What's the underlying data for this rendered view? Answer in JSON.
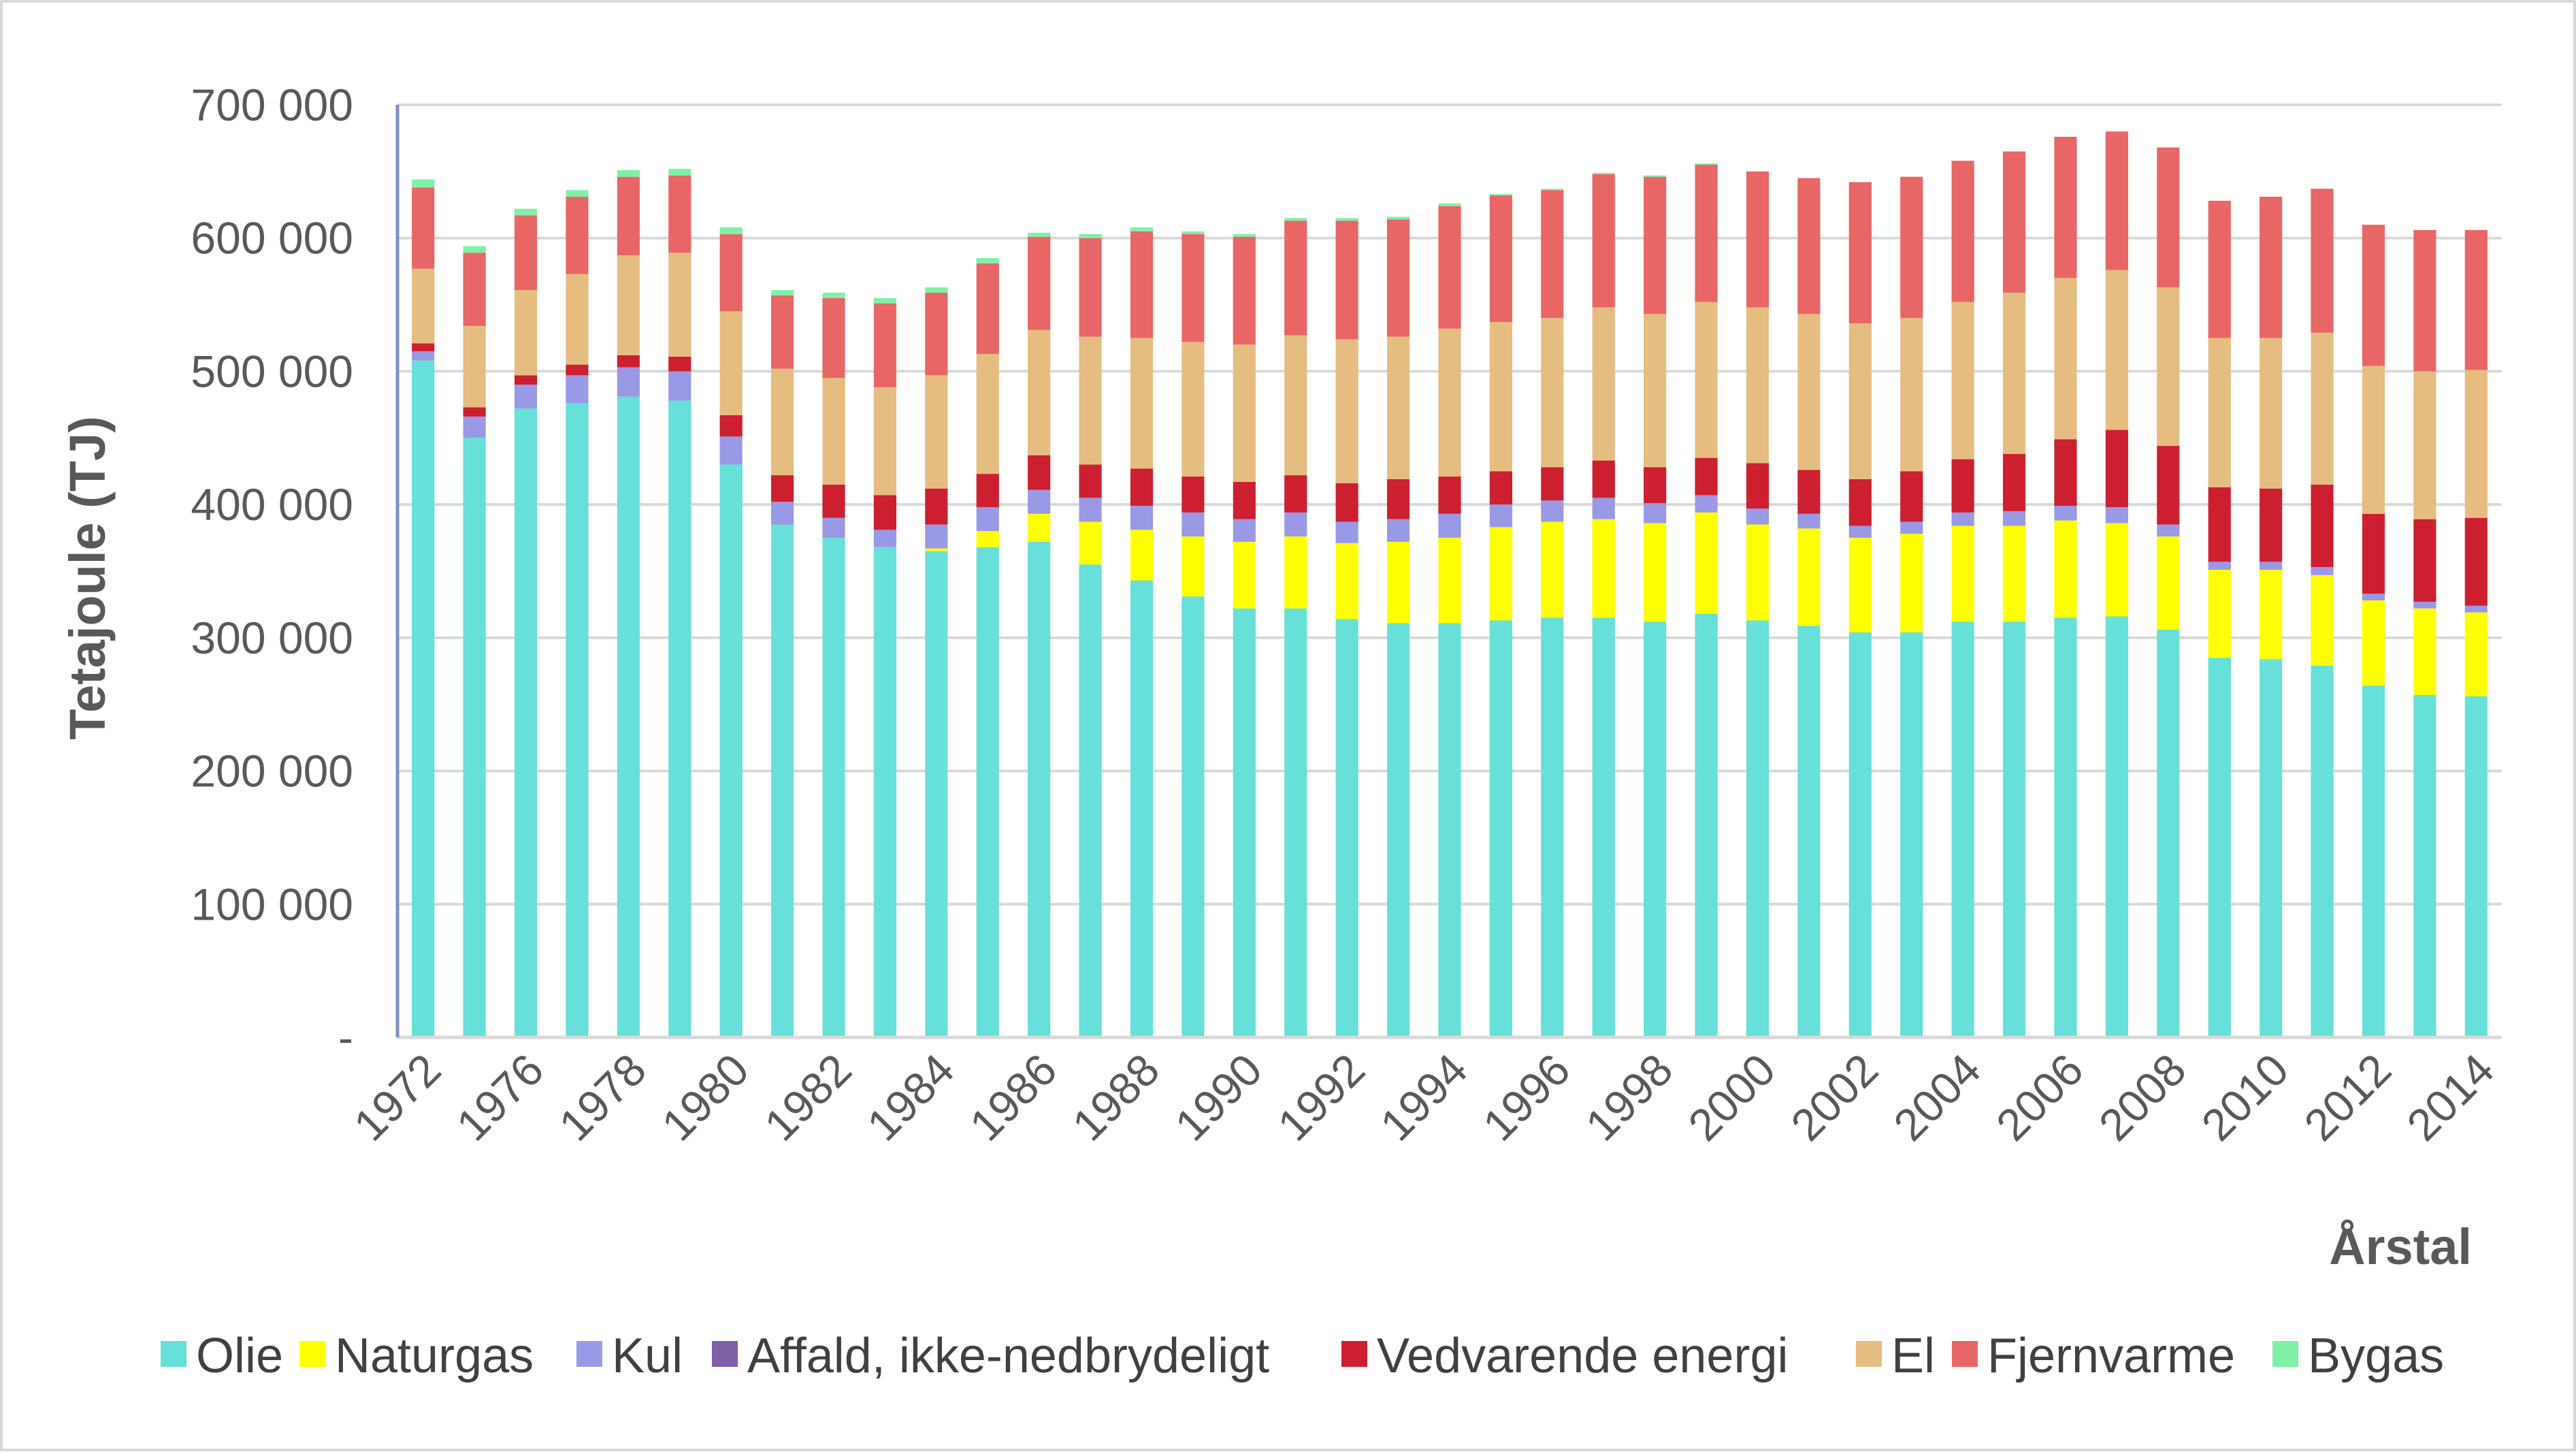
{
  "chart_data": {
    "type": "bar",
    "stacked": true,
    "ylabel": "Tetajoule (TJ)",
    "xlabel": "Årstal",
    "ylim": [
      0,
      700000
    ],
    "y_ticks": [
      {
        "value": 0,
        "label": "-"
      },
      {
        "value": 100000,
        "label": "100 000"
      },
      {
        "value": 200000,
        "label": "200 000"
      },
      {
        "value": 300000,
        "label": "300 000"
      },
      {
        "value": 400000,
        "label": "400 000"
      },
      {
        "value": 500000,
        "label": "500 000"
      },
      {
        "value": 600000,
        "label": "600 000"
      },
      {
        "value": 700000,
        "label": "700 000"
      }
    ],
    "grid": "horizontal",
    "legend_position": "bottom",
    "categories": [
      "1972",
      "1975",
      "1976",
      "1977",
      "1978",
      "1979",
      "1980",
      "1981",
      "1982",
      "1983",
      "1984",
      "1985",
      "1986",
      "1987",
      "1988",
      "1989",
      "1990",
      "1991",
      "1992",
      "1993",
      "1994",
      "1995",
      "1996",
      "1997",
      "1998",
      "1999",
      "2000",
      "2001",
      "2002",
      "2003",
      "2004",
      "2005",
      "2006",
      "2007",
      "2008",
      "2009",
      "2010",
      "2011",
      "2012",
      "2013",
      "2014"
    ],
    "x_tick_labels": [
      "1972",
      "",
      "1976",
      "",
      "1978",
      "",
      "1980",
      "",
      "1982",
      "",
      "1984",
      "",
      "1986",
      "",
      "1988",
      "",
      "1990",
      "",
      "1992",
      "",
      "1994",
      "",
      "1996",
      "",
      "1998",
      "",
      "2000",
      "",
      "2002",
      "",
      "2004",
      "",
      "2006",
      "",
      "2008",
      "",
      "2010",
      "",
      "2012",
      "",
      "2014"
    ],
    "series": [
      {
        "name": "Olie",
        "color": "#66e0d8",
        "values": [
          508000,
          450000,
          472000,
          476000,
          481000,
          478000,
          430000,
          385000,
          375000,
          368000,
          365000,
          368000,
          372000,
          355000,
          343000,
          331000,
          322000,
          322000,
          314000,
          311000,
          311000,
          313000,
          315000,
          315000,
          312000,
          318000,
          313000,
          309000,
          304000,
          304000,
          312000,
          312000,
          315000,
          316000,
          306000,
          285000,
          284000,
          279000,
          264000,
          257000,
          256000
        ]
      },
      {
        "name": "Naturgas",
        "color": "#ffff00",
        "values": [
          0,
          0,
          0,
          0,
          0,
          0,
          0,
          0,
          0,
          0,
          2000,
          12000,
          21000,
          32000,
          38000,
          45000,
          50000,
          54000,
          57000,
          61000,
          64000,
          70000,
          72000,
          74000,
          74000,
          76000,
          72000,
          73000,
          71000,
          74000,
          72000,
          72000,
          73000,
          70000,
          70000,
          66000,
          67000,
          68000,
          64000,
          65000,
          63000
        ]
      },
      {
        "name": "Kul",
        "color": "#9999e6",
        "values": [
          7000,
          16000,
          18000,
          21000,
          22000,
          22000,
          21000,
          17000,
          15000,
          13000,
          18000,
          18000,
          18000,
          18000,
          18000,
          18000,
          17000,
          18000,
          16000,
          17000,
          18000,
          17000,
          16000,
          16000,
          15000,
          13000,
          12000,
          11000,
          9000,
          9000,
          10000,
          11000,
          11000,
          12000,
          9000,
          6000,
          6000,
          6000,
          5000,
          5000,
          5000
        ]
      },
      {
        "name": "Affald, ikke-nedbrydeligt",
        "color": "#7f5fa6",
        "values": [
          0,
          0,
          0,
          0,
          0,
          0,
          0,
          0,
          0,
          0,
          0,
          0,
          0,
          0,
          0,
          0,
          0,
          0,
          0,
          0,
          0,
          0,
          0,
          0,
          0,
          0,
          0,
          0,
          0,
          0,
          0,
          0,
          0,
          0,
          0,
          0,
          0,
          0,
          0,
          0,
          0
        ]
      },
      {
        "name": "Vedvarende energi",
        "color": "#cc2030",
        "values": [
          6000,
          7000,
          7000,
          8000,
          9000,
          11000,
          16000,
          20000,
          25000,
          26000,
          27000,
          25000,
          26000,
          25000,
          28000,
          27000,
          28000,
          28000,
          29000,
          30000,
          28000,
          25000,
          25000,
          28000,
          27000,
          28000,
          34000,
          33000,
          35000,
          38000,
          40000,
          43000,
          50000,
          58000,
          59000,
          56000,
          55000,
          62000,
          60000,
          62000,
          66000
        ]
      },
      {
        "name": "El",
        "color": "#e6bd80",
        "values": [
          56000,
          61000,
          64000,
          68000,
          75000,
          78000,
          78000,
          80000,
          80000,
          81000,
          85000,
          90000,
          94000,
          96000,
          98000,
          101000,
          103000,
          105000,
          108000,
          107000,
          111000,
          112000,
          112000,
          115000,
          115000,
          117000,
          117000,
          117000,
          117000,
          115000,
          118000,
          121000,
          121000,
          120000,
          119000,
          112000,
          113000,
          114000,
          111000,
          111000,
          111000
        ]
      },
      {
        "name": "Fjernvarme",
        "color": "#e86666",
        "values": [
          61000,
          55000,
          56000,
          58000,
          59000,
          58000,
          58000,
          55000,
          60000,
          63000,
          62000,
          68000,
          70000,
          74000,
          80000,
          81000,
          81000,
          86000,
          89000,
          88000,
          92000,
          95000,
          96000,
          100000,
          103000,
          103000,
          102000,
          102000,
          106000,
          106000,
          106000,
          106000,
          106000,
          104000,
          105000,
          103000,
          106000,
          108000,
          106000,
          106000,
          105000
        ]
      },
      {
        "name": "Bygas",
        "color": "#80f0a8",
        "values": [
          6000,
          5000,
          5000,
          5000,
          5000,
          5000,
          5000,
          4000,
          4000,
          4000,
          4000,
          4000,
          3000,
          3000,
          3000,
          2000,
          2000,
          2000,
          2000,
          2000,
          2000,
          1000,
          1000,
          1000,
          1000,
          1000,
          0,
          0,
          0,
          0,
          0,
          0,
          0,
          0,
          0,
          0,
          0,
          0,
          0,
          0,
          0
        ]
      }
    ]
  }
}
